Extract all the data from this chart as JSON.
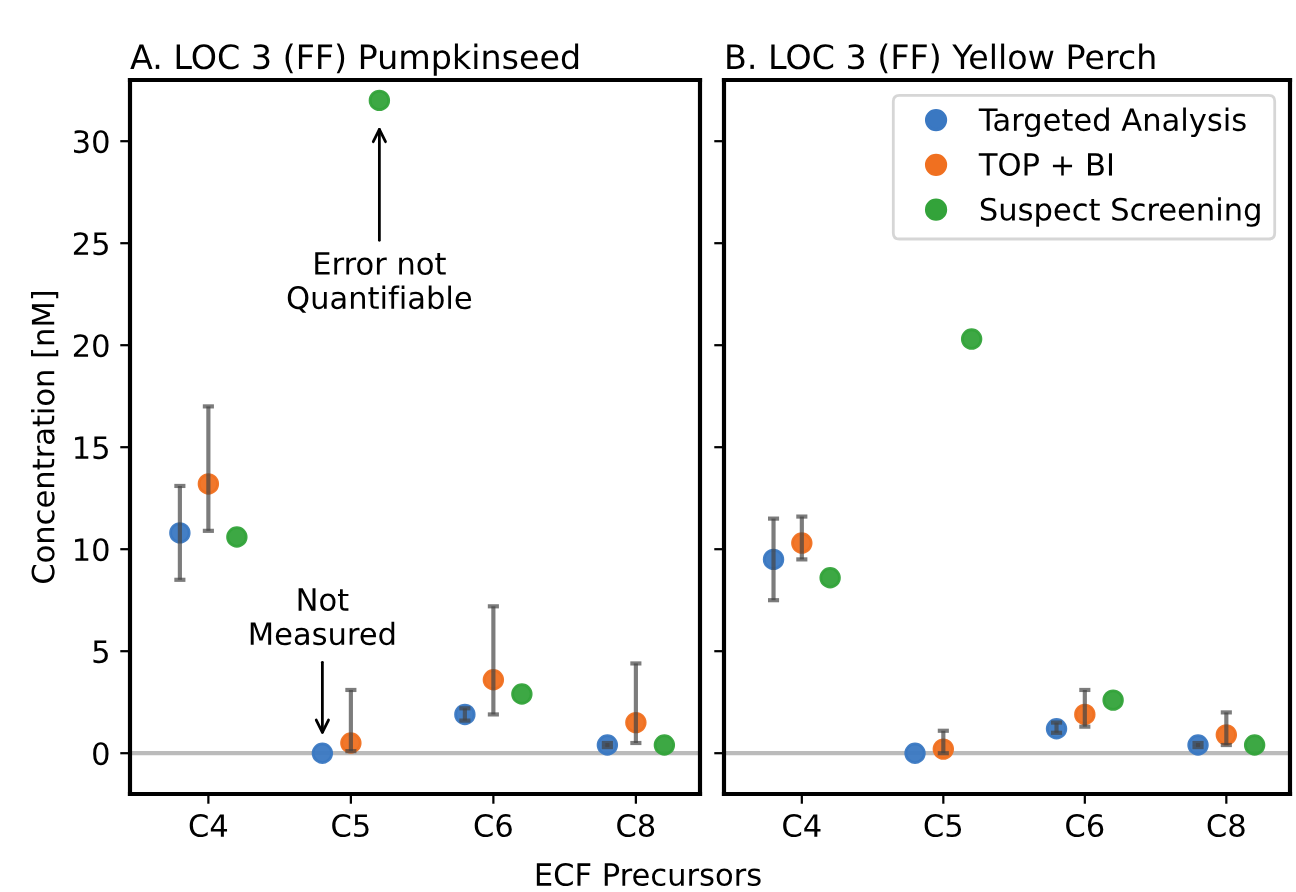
{
  "chart_data": [
    {
      "type": "scatter",
      "title": "A. LOC 3 (FF) Pumpkinseed",
      "xlabel": "ECF Precursors",
      "ylabel": "Concentration [nM]",
      "categories": [
        "C4",
        "C5",
        "C6",
        "C8"
      ],
      "ylim": [
        -2,
        33
      ],
      "yticks": [
        0,
        5,
        10,
        15,
        20,
        25,
        30
      ],
      "marker": "circle",
      "grid": false,
      "ref_lines": [
        {
          "axis": "y",
          "value": 0,
          "color": "#bbbbbb"
        }
      ],
      "annotations": [
        "Error not\nQuantifiable",
        "Not\nMeasured"
      ],
      "series": [
        {
          "color": "#3a78c2",
          "values": [
            10.8,
            0,
            1.9,
            0.4
          ],
          "errors": [
            [
              8.5,
              13.1
            ],
            null,
            [
              1.6,
              2.2
            ],
            [
              0.3,
              0.5
            ]
          ]
        },
        {
          "color": "#f07020",
          "values": [
            13.2,
            0.5,
            3.6,
            1.5
          ],
          "errors": [
            [
              10.9,
              17.0
            ],
            [
              0.1,
              3.1
            ],
            [
              1.9,
              7.2
            ],
            [
              0.5,
              4.4
            ]
          ]
        },
        {
          "color": "#33a33a",
          "values": [
            10.6,
            32.0,
            2.9,
            0.4
          ]
        }
      ]
    },
    {
      "type": "scatter",
      "title": "B. LOC 3 (FF) Yellow Perch",
      "categories": [
        "C4",
        "C5",
        "C6",
        "C8"
      ],
      "ylim": [
        -2,
        33
      ],
      "yticks": [
        0,
        5,
        10,
        15,
        20,
        25,
        30
      ],
      "tick_labels": "x",
      "marker": "circle",
      "grid": false,
      "legend": "top right",
      "ref_lines": [
        {
          "axis": "y",
          "value": 0,
          "color": "#bbbbbb"
        }
      ],
      "series": [
        {
          "name": "Targeted Analysis",
          "color": "#3a78c2",
          "values": [
            9.5,
            0,
            1.2,
            0.4
          ],
          "errors": [
            [
              7.5,
              11.5
            ],
            null,
            [
              1.0,
              1.5
            ],
            [
              0.3,
              0.5
            ]
          ]
        },
        {
          "name": "TOP + BI",
          "color": "#f07020",
          "values": [
            10.3,
            0.2,
            1.9,
            0.9
          ],
          "errors": [
            [
              9.5,
              11.6
            ],
            [
              0.0,
              1.1
            ],
            [
              1.3,
              3.1
            ],
            [
              0.4,
              2.0
            ]
          ]
        },
        {
          "name": "Suspect Screening",
          "color": "#33a33a",
          "values": [
            8.6,
            20.3,
            2.6,
            0.4
          ]
        }
      ]
    }
  ]
}
